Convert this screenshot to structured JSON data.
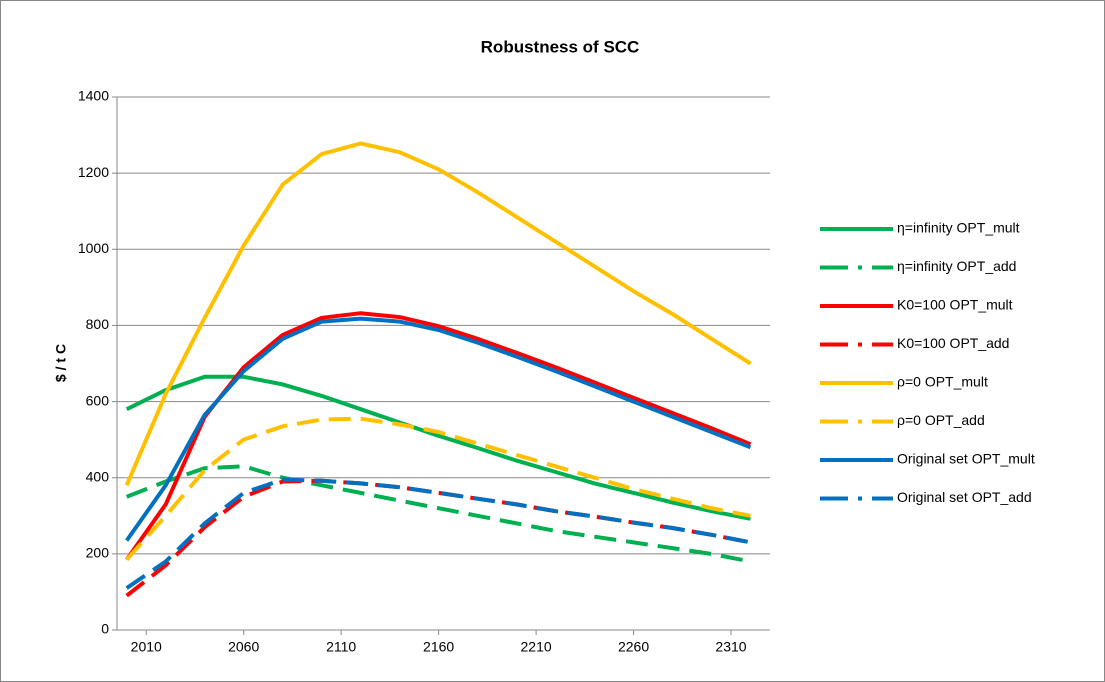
{
  "chart_data": {
    "type": "line",
    "title": "Robustness of SCC",
    "y_label": "$ / t C",
    "x": [
      2000,
      2020,
      2040,
      2060,
      2080,
      2100,
      2120,
      2140,
      2160,
      2180,
      2200,
      2220,
      2240,
      2260,
      2280,
      2300,
      2320
    ],
    "xlim": [
      1995,
      2330
    ],
    "xticks": [
      2010,
      2060,
      2110,
      2160,
      2210,
      2260,
      2310
    ],
    "ylim": [
      0,
      1400
    ],
    "yticks": [
      0,
      200,
      400,
      600,
      800,
      1000,
      1200,
      1400
    ],
    "grid": true,
    "legend": "right",
    "series": [
      {
        "name": "η=infinity OPT_mult",
        "color": "#00b050",
        "dashed": false,
        "values": [
          580,
          630,
          665,
          665,
          645,
          615,
          580,
          545,
          510,
          478,
          445,
          415,
          385,
          360,
          335,
          312,
          292
        ]
      },
      {
        "name": "η=infinity OPT_add",
        "color": "#00b050",
        "dashed": true,
        "values": [
          350,
          390,
          425,
          430,
          400,
          380,
          360,
          340,
          320,
          300,
          280,
          260,
          245,
          230,
          215,
          200,
          180
        ]
      },
      {
        "name": "K0=100 OPT_mult",
        "color": "#ff0000",
        "dashed": false,
        "values": [
          185,
          330,
          560,
          690,
          775,
          820,
          832,
          822,
          798,
          765,
          728,
          690,
          650,
          610,
          570,
          530,
          488
        ]
      },
      {
        "name": "K0=100 OPT_add",
        "color": "#ff0000",
        "dashed": true,
        "values": [
          90,
          170,
          270,
          350,
          390,
          392,
          385,
          375,
          360,
          345,
          330,
          312,
          298,
          282,
          268,
          250,
          230
        ]
      },
      {
        "name": "ρ=0 OPT_mult",
        "color": "#ffc000",
        "dashed": false,
        "values": [
          380,
          620,
          820,
          1010,
          1170,
          1250,
          1278,
          1255,
          1210,
          1150,
          1085,
          1020,
          955,
          890,
          830,
          765,
          700
        ]
      },
      {
        "name": "ρ=0 OPT_add",
        "color": "#ffc000",
        "dashed": true,
        "values": [
          185,
          300,
          420,
          500,
          535,
          553,
          555,
          540,
          520,
          490,
          460,
          430,
          400,
          370,
          345,
          320,
          300
        ]
      },
      {
        "name": "Original set OPT_mult",
        "color": "#0070c0",
        "dashed": false,
        "values": [
          235,
          380,
          565,
          680,
          765,
          810,
          818,
          810,
          788,
          755,
          718,
          680,
          640,
          600,
          560,
          520,
          480
        ]
      },
      {
        "name": "Original set OPT_add",
        "color": "#0070c0",
        "dashed": true,
        "values": [
          110,
          180,
          280,
          360,
          395,
          392,
          385,
          375,
          360,
          345,
          330,
          312,
          298,
          282,
          268,
          250,
          230
        ]
      }
    ]
  }
}
